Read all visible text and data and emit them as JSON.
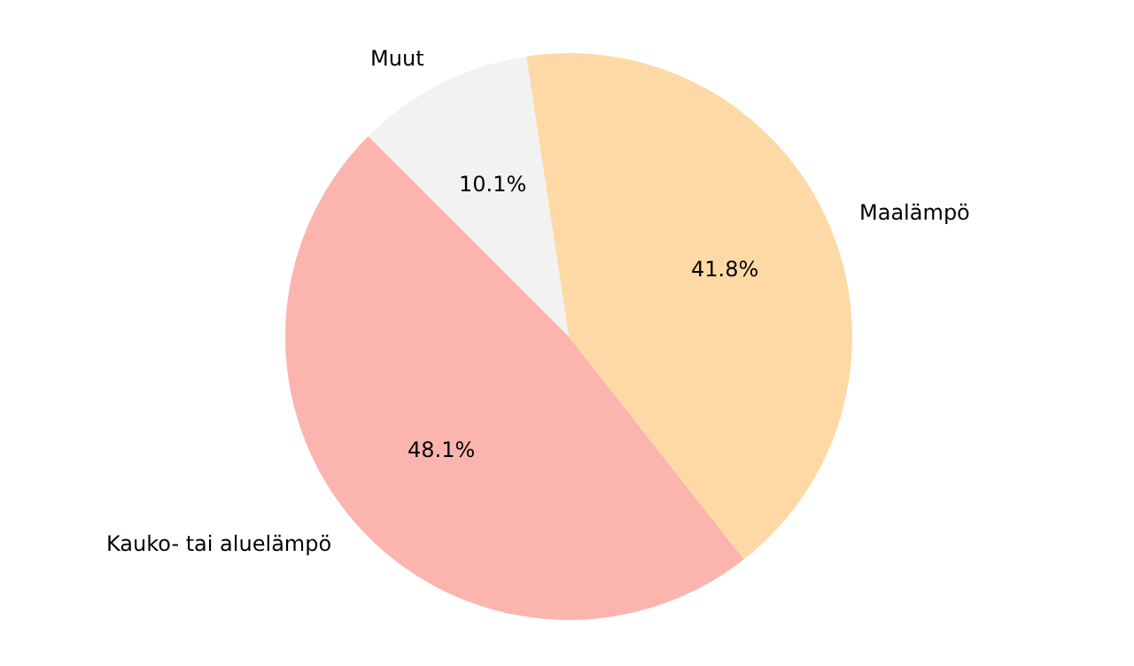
{
  "chart_data": {
    "type": "pie",
    "categories": [
      "Kauko- tai aluelämpö",
      "Maalämpö",
      "Muut"
    ],
    "values": [
      48.1,
      41.8,
      10.1
    ],
    "colors": [
      "#fbb4ae",
      "#fed9a6",
      "#f2f2f2"
    ],
    "value_labels": [
      "48.1%",
      "41.8%",
      "10.1%"
    ],
    "legend": false
  }
}
